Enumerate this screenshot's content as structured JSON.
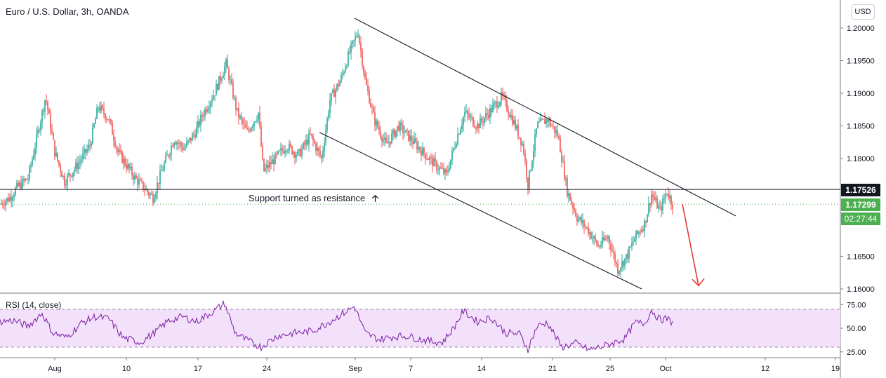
{
  "header": {
    "title": "Euro / U.S. Dollar, 3h, OANDA",
    "currency_button": "USD"
  },
  "annotation": {
    "text": "Support turned as resistance"
  },
  "price_axis": {
    "ticks": [
      "1.20000",
      "1.19500",
      "1.19000",
      "1.18500",
      "1.18000",
      "1.16500",
      "1.16000"
    ]
  },
  "price_tags": {
    "resistance": "1.17526",
    "last": "1.17299",
    "countdown": "02:27:44"
  },
  "rsi": {
    "label": "RSI (14, close)",
    "ticks": [
      "75.00",
      "50.00",
      "25.00"
    ]
  },
  "time_axis": {
    "labels": [
      "Aug",
      "10",
      "17",
      "24",
      "Sep",
      "7",
      "14",
      "21",
      "25",
      "Oct",
      "12",
      "19"
    ]
  },
  "colors": {
    "up": "#26a69a",
    "down": "#ef5350",
    "rsi_line": "#7b1fa2",
    "rsi_band": "#f3e0fb",
    "arrow": "#e53935",
    "last_price": "#4caf50"
  },
  "chart_data": {
    "type": "candlestick",
    "title": "Euro / U.S. Dollar, 3h, OANDA",
    "y_range": [
      1.1595,
      1.2035
    ],
    "x_range_days": "Jul 29 to Oct 19",
    "horizontal_line": 1.17526,
    "last_price": 1.17299,
    "price_path": [
      [
        0,
        1.173
      ],
      [
        14,
        1.174
      ],
      [
        24,
        1.1755
      ],
      [
        40,
        1.177
      ],
      [
        52,
        1.183
      ],
      [
        65,
        1.1895
      ],
      [
        78,
        1.181
      ],
      [
        92,
        1.1765
      ],
      [
        110,
        1.179
      ],
      [
        128,
        1.182
      ],
      [
        140,
        1.188
      ],
      [
        155,
        1.186
      ],
      [
        168,
        1.181
      ],
      [
        180,
        1.179
      ],
      [
        192,
        1.177
      ],
      [
        205,
        1.1755
      ],
      [
        218,
        1.174
      ],
      [
        230,
        1.178
      ],
      [
        248,
        1.183
      ],
      [
        262,
        1.1815
      ],
      [
        278,
        1.184
      ],
      [
        290,
        1.187
      ],
      [
        305,
        1.19
      ],
      [
        322,
        1.1945
      ],
      [
        338,
        1.187
      ],
      [
        352,
        1.184
      ],
      [
        368,
        1.187
      ],
      [
        375,
        1.178
      ],
      [
        392,
        1.18
      ],
      [
        408,
        1.182
      ],
      [
        425,
        1.1805
      ],
      [
        442,
        1.1835
      ],
      [
        458,
        1.18
      ],
      [
        470,
        1.189
      ],
      [
        485,
        1.192
      ],
      [
        497,
        1.196
      ],
      [
        510,
        1.1995
      ],
      [
        520,
        1.192
      ],
      [
        533,
        1.186
      ],
      [
        550,
        1.182
      ],
      [
        568,
        1.185
      ],
      [
        585,
        1.183
      ],
      [
        602,
        1.181
      ],
      [
        620,
        1.179
      ],
      [
        636,
        1.1775
      ],
      [
        650,
        1.183
      ],
      [
        662,
        1.187
      ],
      [
        680,
        1.185
      ],
      [
        700,
        1.1875
      ],
      [
        715,
        1.1895
      ],
      [
        730,
        1.186
      ],
      [
        745,
        1.182
      ],
      [
        752,
        1.176
      ],
      [
        765,
        1.185
      ],
      [
        780,
        1.186
      ],
      [
        795,
        1.1835
      ],
      [
        808,
        1.175
      ],
      [
        822,
        1.171
      ],
      [
        838,
        1.169
      ],
      [
        852,
        1.1665
      ],
      [
        866,
        1.168
      ],
      [
        880,
        1.163
      ],
      [
        893,
        1.165
      ],
      [
        905,
        1.168
      ],
      [
        918,
        1.17
      ],
      [
        928,
        1.1745
      ],
      [
        940,
        1.172
      ],
      [
        950,
        1.175
      ],
      [
        958,
        1.173
      ]
    ],
    "rsi": {
      "name": "RSI (14, close)",
      "y_range": [
        20,
        80
      ],
      "upper_band": 70,
      "lower_band": 30,
      "path": [
        [
          0,
          57
        ],
        [
          20,
          58
        ],
        [
          40,
          52
        ],
        [
          60,
          66
        ],
        [
          75,
          45
        ],
        [
          95,
          40
        ],
        [
          115,
          55
        ],
        [
          135,
          62
        ],
        [
          155,
          60
        ],
        [
          175,
          40
        ],
        [
          200,
          35
        ],
        [
          220,
          45
        ],
        [
          240,
          58
        ],
        [
          260,
          62
        ],
        [
          280,
          57
        ],
        [
          300,
          66
        ],
        [
          320,
          76
        ],
        [
          335,
          45
        ],
        [
          350,
          38
        ],
        [
          372,
          30
        ],
        [
          395,
          42
        ],
        [
          420,
          45
        ],
        [
          445,
          47
        ],
        [
          465,
          55
        ],
        [
          485,
          64
        ],
        [
          505,
          73
        ],
        [
          520,
          45
        ],
        [
          540,
          38
        ],
        [
          560,
          41
        ],
        [
          580,
          42
        ],
        [
          600,
          38
        ],
        [
          615,
          36
        ],
        [
          630,
          35
        ],
        [
          645,
          49
        ],
        [
          660,
          68
        ],
        [
          680,
          57
        ],
        [
          700,
          61
        ],
        [
          720,
          45
        ],
        [
          740,
          44
        ],
        [
          752,
          28
        ],
        [
          765,
          52
        ],
        [
          780,
          56
        ],
        [
          800,
          30
        ],
        [
          820,
          34
        ],
        [
          840,
          27
        ],
        [
          860,
          31
        ],
        [
          875,
          35
        ],
        [
          890,
          39
        ],
        [
          905,
          56
        ],
        [
          918,
          55
        ],
        [
          928,
          69
        ],
        [
          940,
          59
        ],
        [
          950,
          60
        ],
        [
          958,
          56
        ]
      ]
    },
    "trend_lines": [
      {
        "name": "upper",
        "from": [
          505,
          1.2015
        ],
        "to": [
          1048,
          1.1712
        ]
      },
      {
        "name": "lower",
        "from": [
          455,
          1.184
        ],
        "to": [
          914,
          1.16
        ]
      }
    ],
    "projection_arrow": {
      "from": [
        972,
        1.173
      ],
      "to": [
        995,
        1.1605
      ]
    }
  }
}
